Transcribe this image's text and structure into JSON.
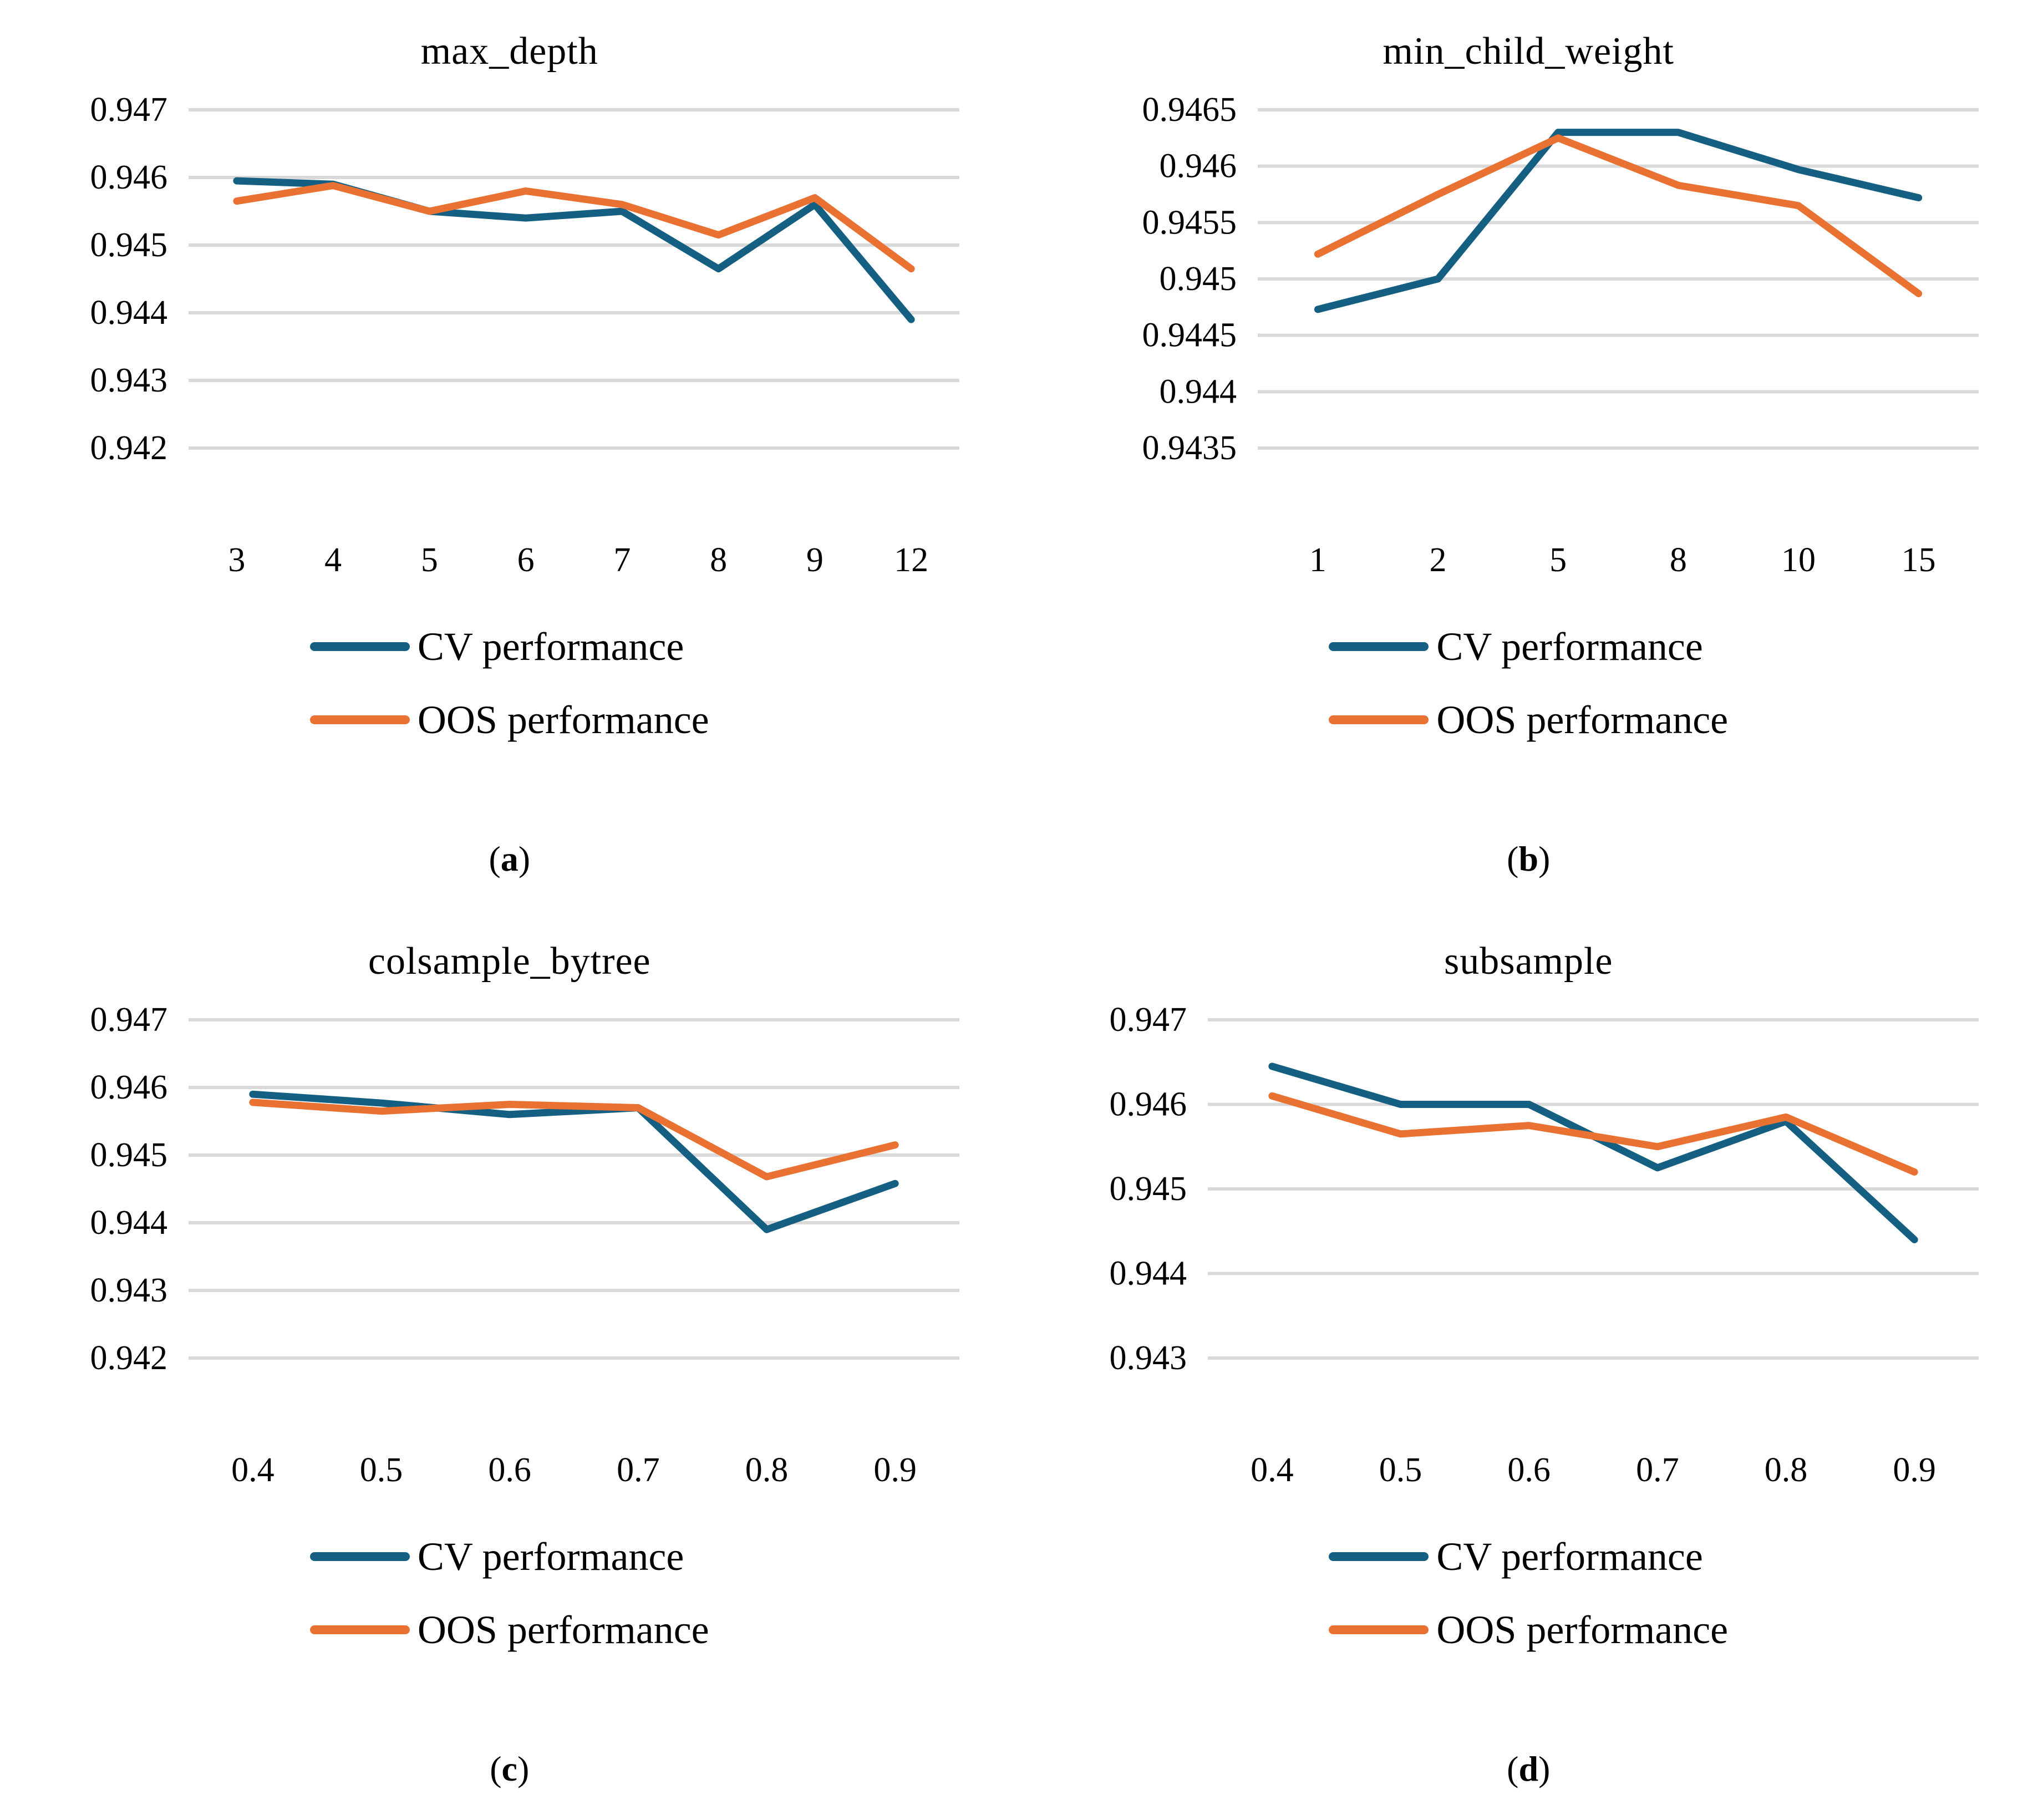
{
  "colors": {
    "cv": "#156082",
    "oos": "#E97132",
    "gridline": "#D9D9D9",
    "text": "#000000",
    "background": "#FFFFFF"
  },
  "chart_data": [
    {
      "type": "line",
      "title": "max_depth",
      "caption": "a",
      "grid": true,
      "legend_position": "bottom-left",
      "categories": [
        "3",
        "4",
        "5",
        "6",
        "7",
        "8",
        "9",
        "12"
      ],
      "y_ticks": [
        "0.947",
        "0.946",
        "0.945",
        "0.944",
        "0.943",
        "0.942"
      ],
      "ylim": [
        0.942,
        0.947
      ],
      "series": [
        {
          "name": "CV performance",
          "color": "#156082",
          "values": [
            0.94595,
            0.9459,
            0.9455,
            0.9454,
            0.9455,
            0.94465,
            0.9456,
            0.9439
          ]
        },
        {
          "name": "OOS performance",
          "color": "#E97132",
          "values": [
            0.94565,
            0.94588,
            0.9455,
            0.9458,
            0.9456,
            0.94515,
            0.9457,
            0.94465
          ]
        }
      ]
    },
    {
      "type": "line",
      "title": "min_child_weight",
      "caption": "b",
      "grid": true,
      "legend_position": "bottom-left",
      "categories": [
        "1",
        "2",
        "5",
        "8",
        "10",
        "15"
      ],
      "y_ticks": [
        "0.9465",
        "0.946",
        "0.9455",
        "0.945",
        "0.9445",
        "0.944",
        "0.9435"
      ],
      "ylim": [
        0.9435,
        0.9465
      ],
      "series": [
        {
          "name": "CV performance",
          "color": "#156082",
          "values": [
            0.94473,
            0.945,
            0.9463,
            0.9463,
            0.94597,
            0.94572
          ]
        },
        {
          "name": "OOS performance",
          "color": "#E97132",
          "values": [
            0.94522,
            0.94575,
            0.94625,
            0.94583,
            0.94565,
            0.94487
          ]
        }
      ]
    },
    {
      "type": "line",
      "title": "colsample_bytree",
      "caption": "c",
      "grid": true,
      "legend_position": "bottom-left",
      "categories": [
        "0.4",
        "0.5",
        "0.6",
        "0.7",
        "0.8",
        "0.9"
      ],
      "y_ticks": [
        "0.947",
        "0.946",
        "0.945",
        "0.944",
        "0.943",
        "0.942"
      ],
      "ylim": [
        0.942,
        0.947
      ],
      "series": [
        {
          "name": "CV performance",
          "color": "#156082",
          "values": [
            0.9459,
            0.94577,
            0.9456,
            0.9457,
            0.9439,
            0.94458
          ]
        },
        {
          "name": "OOS performance",
          "color": "#E97132",
          "values": [
            0.94578,
            0.94565,
            0.94575,
            0.9457,
            0.94468,
            0.94515
          ]
        }
      ]
    },
    {
      "type": "line",
      "title": "subsample",
      "caption": "d",
      "grid": true,
      "legend_position": "bottom-left",
      "categories": [
        "0.4",
        "0.5",
        "0.6",
        "0.7",
        "0.8",
        "0.9"
      ],
      "y_ticks": [
        "0.947",
        "0.946",
        "0.945",
        "0.944",
        "0.943"
      ],
      "ylim": [
        0.943,
        0.947
      ],
      "series": [
        {
          "name": "CV performance",
          "color": "#156082",
          "values": [
            0.94645,
            0.946,
            0.946,
            0.94525,
            0.9458,
            0.9444
          ]
        },
        {
          "name": "OOS performance",
          "color": "#E97132",
          "values": [
            0.9461,
            0.94565,
            0.94575,
            0.9455,
            0.94585,
            0.9452
          ]
        }
      ]
    }
  ]
}
